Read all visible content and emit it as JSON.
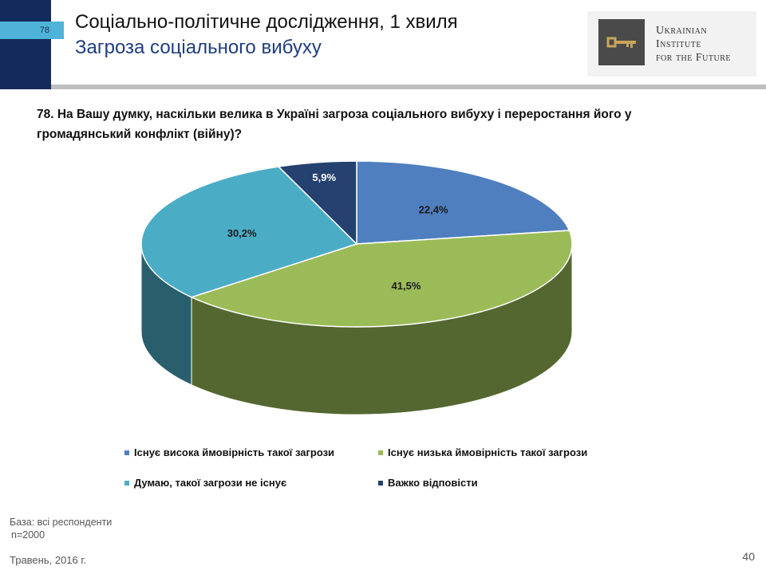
{
  "header": {
    "slide_tag": "78",
    "title": "Соціально-політичне дослідження, 1 хвиля",
    "subtitle": "Загроза соціального вибуху"
  },
  "logo": {
    "line1": "Ukrainian",
    "line2": "Institute",
    "line3": "for the Future"
  },
  "question": "78. На Вашу думку, наскільки велика в Україні загроза соціального вибуху і переростання його у громадянський конфлікт (війну)?",
  "chart_data": {
    "type": "pie",
    "style": "3d",
    "slices": [
      {
        "label": "Існує висока ймовірність такої загрози",
        "value": 22.4,
        "display": "22,4%",
        "color": "#4f7fbf"
      },
      {
        "label": "Існує низька ймовірність такої загрози",
        "value": 41.5,
        "display": "41,5%",
        "color": "#9bbb59"
      },
      {
        "label": "Думаю, такої загрози не існує",
        "value": 30.2,
        "display": "30,2%",
        "color": "#4bacc6"
      },
      {
        "label": "Важко відповісти",
        "value": 5.9,
        "display": "5,9%",
        "color": "#24416f"
      }
    ],
    "legend_position": "bottom"
  },
  "footer": {
    "base": "База: всі респонденти",
    "n": "n=2000",
    "date": "Травень, 2016 г.",
    "page": "40"
  }
}
